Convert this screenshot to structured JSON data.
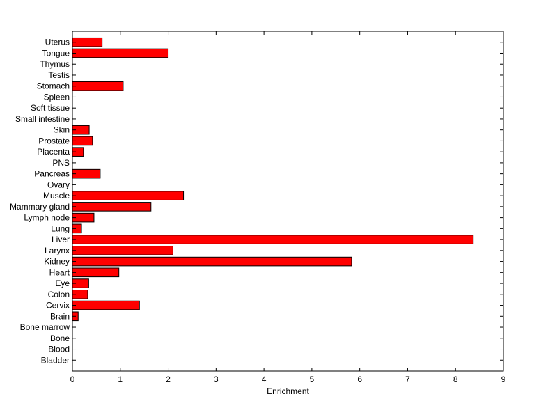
{
  "chart_data": {
    "type": "bar",
    "orientation": "horizontal",
    "title": "",
    "xlabel": "Enrichment",
    "ylabel": "",
    "xlim": [
      0,
      9
    ],
    "xticks": [
      0,
      1,
      2,
      3,
      4,
      5,
      6,
      7,
      8,
      9
    ],
    "grid": false,
    "legend": "none",
    "bar_color": "#ff0000",
    "edge_color": "#000000",
    "categories": [
      "Uterus",
      "Tongue",
      "Thymus",
      "Testis",
      "Stomach",
      "Spleen",
      "Soft tissue",
      "Small intestine",
      "Skin",
      "Prostate",
      "Placenta",
      "PNS",
      "Pancreas",
      "Ovary",
      "Muscle",
      "Mammary gland",
      "Lymph node",
      "Lung",
      "Liver",
      "Larynx",
      "Kidney",
      "Heart",
      "Eye",
      "Colon",
      "Cervix",
      "Brain",
      "Bone marrow",
      "Bone",
      "Blood",
      "Bladder"
    ],
    "values": [
      0.62,
      2.0,
      0,
      0,
      1.06,
      0,
      0,
      0,
      0.35,
      0.42,
      0.23,
      0,
      0.58,
      0,
      2.32,
      1.64,
      0.45,
      0.19,
      8.37,
      2.1,
      5.83,
      0.97,
      0.34,
      0.32,
      1.4,
      0.12,
      0,
      0,
      0,
      0
    ]
  }
}
